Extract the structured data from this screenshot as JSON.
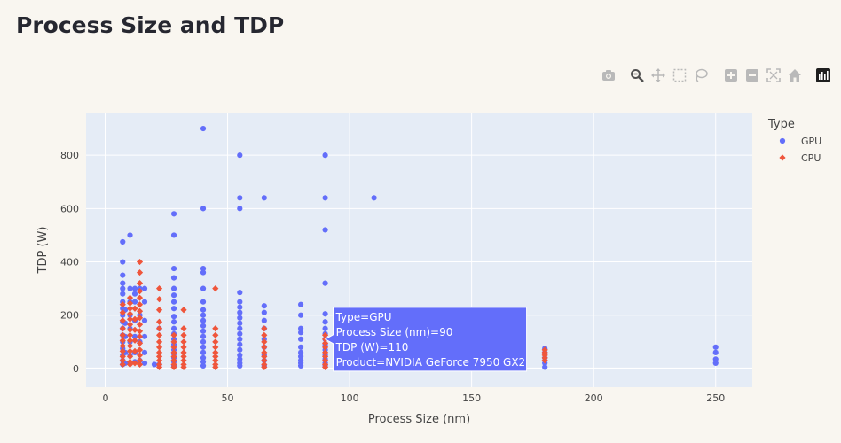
{
  "page": {
    "title": "Process Size and TDP"
  },
  "modebar": {
    "buttons": [
      {
        "name": "camera-icon",
        "title": "Download plot as a png"
      },
      {
        "name": "zoom-icon",
        "title": "Zoom"
      },
      {
        "name": "pan-icon",
        "title": "Pan"
      },
      {
        "name": "box-select-icon",
        "title": "Box Select"
      },
      {
        "name": "lasso-select-icon",
        "title": "Lasso Select"
      },
      {
        "name": "zoom-in-icon",
        "title": "Zoom in"
      },
      {
        "name": "zoom-out-icon",
        "title": "Zoom out"
      },
      {
        "name": "autoscale-icon",
        "title": "Autoscale"
      },
      {
        "name": "home-icon",
        "title": "Reset axes"
      },
      {
        "name": "plotly-logo-icon",
        "title": "Produced with Plotly"
      }
    ]
  },
  "chart_data": {
    "type": "scatter",
    "title": "Process Size and TDP",
    "xlabel": "Process Size (nm)",
    "ylabel": "TDP (W)",
    "xlim": [
      -8,
      265
    ],
    "ylim": [
      -70,
      960
    ],
    "xticks": [
      0,
      50,
      100,
      150,
      200,
      250
    ],
    "yticks": [
      0,
      200,
      400,
      600,
      800
    ],
    "grid": true,
    "legend": {
      "title": "Type",
      "placement": "right"
    },
    "colors": {
      "GPU": "#636efa",
      "CPU": "#ef553b",
      "plot_bg": "#e5ecf6",
      "grid": "#ffffff"
    },
    "series": [
      {
        "name": "GPU",
        "marker": "circle",
        "points": [
          [
            7,
            15
          ],
          [
            7,
            30
          ],
          [
            7,
            50
          ],
          [
            7,
            75
          ],
          [
            7,
            100
          ],
          [
            7,
            125
          ],
          [
            7,
            150
          ],
          [
            7,
            175
          ],
          [
            7,
            200
          ],
          [
            7,
            225
          ],
          [
            7,
            250
          ],
          [
            7,
            280
          ],
          [
            7,
            300
          ],
          [
            7,
            320
          ],
          [
            7,
            350
          ],
          [
            7,
            400
          ],
          [
            7,
            475
          ],
          [
            8,
            20
          ],
          [
            8,
            60
          ],
          [
            8,
            120
          ],
          [
            8,
            170
          ],
          [
            8,
            220
          ],
          [
            10,
            20
          ],
          [
            10,
            50
          ],
          [
            10,
            100
          ],
          [
            10,
            150
          ],
          [
            10,
            200
          ],
          [
            10,
            250
          ],
          [
            10,
            300
          ],
          [
            10,
            500
          ],
          [
            12,
            25
          ],
          [
            12,
            60
          ],
          [
            12,
            120
          ],
          [
            12,
            180
          ],
          [
            12,
            250
          ],
          [
            12,
            280
          ],
          [
            12,
            300
          ],
          [
            14,
            30
          ],
          [
            14,
            100
          ],
          [
            14,
            200
          ],
          [
            14,
            300
          ],
          [
            16,
            20
          ],
          [
            16,
            60
          ],
          [
            16,
            120
          ],
          [
            16,
            180
          ],
          [
            16,
            250
          ],
          [
            16,
            300
          ],
          [
            20,
            15
          ],
          [
            22,
            15
          ],
          [
            22,
            150
          ],
          [
            28,
            10
          ],
          [
            28,
            25
          ],
          [
            28,
            40
          ],
          [
            28,
            55
          ],
          [
            28,
            70
          ],
          [
            28,
            90
          ],
          [
            28,
            110
          ],
          [
            28,
            130
          ],
          [
            28,
            150
          ],
          [
            28,
            175
          ],
          [
            28,
            195
          ],
          [
            28,
            225
          ],
          [
            28,
            250
          ],
          [
            28,
            275
          ],
          [
            28,
            300
          ],
          [
            28,
            340
          ],
          [
            28,
            375
          ],
          [
            28,
            500
          ],
          [
            28,
            580
          ],
          [
            40,
            10
          ],
          [
            40,
            25
          ],
          [
            40,
            40
          ],
          [
            40,
            60
          ],
          [
            40,
            80
          ],
          [
            40,
            100
          ],
          [
            40,
            120
          ],
          [
            40,
            140
          ],
          [
            40,
            160
          ],
          [
            40,
            180
          ],
          [
            40,
            200
          ],
          [
            40,
            220
          ],
          [
            40,
            250
          ],
          [
            40,
            300
          ],
          [
            40,
            360
          ],
          [
            40,
            375
          ],
          [
            40,
            600
          ],
          [
            40,
            900
          ],
          [
            55,
            10
          ],
          [
            55,
            20
          ],
          [
            55,
            35
          ],
          [
            55,
            50
          ],
          [
            55,
            70
          ],
          [
            55,
            90
          ],
          [
            55,
            110
          ],
          [
            55,
            130
          ],
          [
            55,
            150
          ],
          [
            55,
            170
          ],
          [
            55,
            190
          ],
          [
            55,
            210
          ],
          [
            55,
            230
          ],
          [
            55,
            250
          ],
          [
            55,
            285
          ],
          [
            55,
            600
          ],
          [
            55,
            640
          ],
          [
            55,
            800
          ],
          [
            65,
            10
          ],
          [
            65,
            30
          ],
          [
            65,
            50
          ],
          [
            65,
            80
          ],
          [
            65,
            110
          ],
          [
            65,
            150
          ],
          [
            65,
            180
          ],
          [
            65,
            210
          ],
          [
            65,
            235
          ],
          [
            65,
            640
          ],
          [
            80,
            10
          ],
          [
            80,
            20
          ],
          [
            80,
            30
          ],
          [
            80,
            45
          ],
          [
            80,
            60
          ],
          [
            80,
            80
          ],
          [
            80,
            110
          ],
          [
            80,
            135
          ],
          [
            80,
            150
          ],
          [
            80,
            200
          ],
          [
            80,
            240
          ],
          [
            90,
            10
          ],
          [
            90,
            20
          ],
          [
            90,
            35
          ],
          [
            90,
            50
          ],
          [
            90,
            70
          ],
          [
            90,
            90
          ],
          [
            90,
            110
          ],
          [
            90,
            130
          ],
          [
            90,
            150
          ],
          [
            90,
            175
          ],
          [
            90,
            205
          ],
          [
            90,
            320
          ],
          [
            90,
            520
          ],
          [
            90,
            640
          ],
          [
            90,
            800
          ],
          [
            110,
            640
          ],
          [
            180,
            5
          ],
          [
            180,
            20
          ],
          [
            180,
            40
          ],
          [
            180,
            60
          ],
          [
            180,
            75
          ],
          [
            250,
            20
          ],
          [
            250,
            35
          ],
          [
            250,
            60
          ],
          [
            250,
            80
          ]
        ]
      },
      {
        "name": "CPU",
        "marker": "diamond",
        "points": [
          [
            7,
            15
          ],
          [
            7,
            30
          ],
          [
            7,
            45
          ],
          [
            7,
            65
          ],
          [
            7,
            85
          ],
          [
            7,
            105
          ],
          [
            7,
            125
          ],
          [
            7,
            150
          ],
          [
            7,
            180
          ],
          [
            7,
            210
          ],
          [
            7,
            240
          ],
          [
            10,
            15
          ],
          [
            10,
            25
          ],
          [
            10,
            45
          ],
          [
            10,
            65
          ],
          [
            10,
            85
          ],
          [
            10,
            105
          ],
          [
            10,
            125
          ],
          [
            10,
            145
          ],
          [
            10,
            165
          ],
          [
            10,
            185
          ],
          [
            10,
            205
          ],
          [
            10,
            225
          ],
          [
            10,
            245
          ],
          [
            10,
            265
          ],
          [
            12,
            20
          ],
          [
            12,
            65
          ],
          [
            12,
            105
          ],
          [
            12,
            145
          ],
          [
            12,
            185
          ],
          [
            12,
            225
          ],
          [
            14,
            15
          ],
          [
            14,
            30
          ],
          [
            14,
            50
          ],
          [
            14,
            70
          ],
          [
            14,
            95
          ],
          [
            14,
            120
          ],
          [
            14,
            140
          ],
          [
            14,
            165
          ],
          [
            14,
            190
          ],
          [
            14,
            215
          ],
          [
            14,
            240
          ],
          [
            14,
            265
          ],
          [
            14,
            290
          ],
          [
            14,
            320
          ],
          [
            14,
            360
          ],
          [
            14,
            400
          ],
          [
            22,
            5
          ],
          [
            22,
            15
          ],
          [
            22,
            30
          ],
          [
            22,
            45
          ],
          [
            22,
            60
          ],
          [
            22,
            80
          ],
          [
            22,
            100
          ],
          [
            22,
            125
          ],
          [
            22,
            150
          ],
          [
            22,
            175
          ],
          [
            22,
            220
          ],
          [
            22,
            260
          ],
          [
            22,
            300
          ],
          [
            28,
            5
          ],
          [
            28,
            15
          ],
          [
            28,
            30
          ],
          [
            28,
            45
          ],
          [
            28,
            60
          ],
          [
            28,
            80
          ],
          [
            28,
            100
          ],
          [
            28,
            125
          ],
          [
            32,
            5
          ],
          [
            32,
            15
          ],
          [
            32,
            30
          ],
          [
            32,
            45
          ],
          [
            32,
            60
          ],
          [
            32,
            80
          ],
          [
            32,
            100
          ],
          [
            32,
            125
          ],
          [
            32,
            150
          ],
          [
            32,
            220
          ],
          [
            45,
            5
          ],
          [
            45,
            15
          ],
          [
            45,
            30
          ],
          [
            45,
            45
          ],
          [
            45,
            60
          ],
          [
            45,
            80
          ],
          [
            45,
            100
          ],
          [
            45,
            125
          ],
          [
            45,
            150
          ],
          [
            45,
            300
          ],
          [
            65,
            5
          ],
          [
            65,
            15
          ],
          [
            65,
            30
          ],
          [
            65,
            45
          ],
          [
            65,
            60
          ],
          [
            65,
            80
          ],
          [
            65,
            100
          ],
          [
            65,
            125
          ],
          [
            65,
            150
          ],
          [
            90,
            5
          ],
          [
            90,
            15
          ],
          [
            90,
            30
          ],
          [
            90,
            45
          ],
          [
            90,
            60
          ],
          [
            90,
            80
          ],
          [
            90,
            95
          ],
          [
            90,
            110
          ],
          [
            90,
            125
          ],
          [
            180,
            30
          ],
          [
            180,
            40
          ],
          [
            180,
            50
          ],
          [
            180,
            60
          ],
          [
            180,
            70
          ]
        ]
      }
    ],
    "hover": {
      "x": 90,
      "y": 110,
      "lines": [
        "Type=GPU",
        "Process Size (nm)=90",
        "TDP (W)=110",
        "Product=NVIDIA GeForce 7950 GX2"
      ]
    }
  }
}
